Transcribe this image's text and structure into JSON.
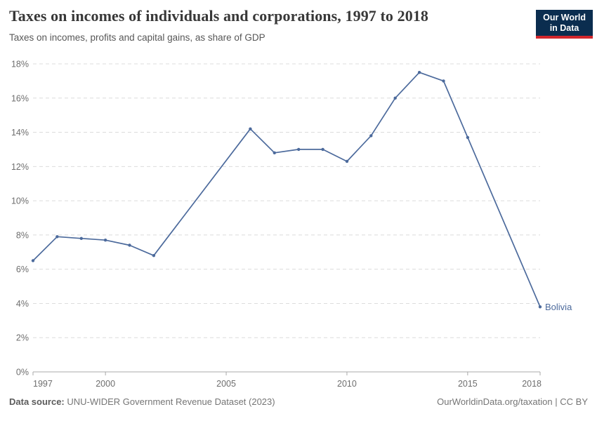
{
  "header": {
    "title": "Taxes on incomes of individuals and corporations, 1997 to 2018",
    "subtitle": "Taxes on incomes, profits and capital gains, as share of GDP"
  },
  "logo": {
    "line1": "Our World",
    "line2": "in Data"
  },
  "colors": {
    "line": "#4c6a9c",
    "logo_bg": "#0b2d4f",
    "logo_stripe": "#d2262c",
    "grid": "#dcdcdc",
    "axis": "#a8a8a8",
    "tick_label": "#6e6e6e"
  },
  "chart_data": {
    "type": "line",
    "title": "Taxes on incomes of individuals and corporations, 1997 to 2018",
    "subtitle": "Taxes on incomes, profits and capital gains, as share of GDP",
    "xlabel": "",
    "ylabel": "",
    "xlim": [
      1997,
      2018
    ],
    "ylim": [
      0,
      18
    ],
    "x_ticks": [
      1997,
      2000,
      2005,
      2010,
      2015,
      2018
    ],
    "x_tick_labels": [
      "1997",
      "2000",
      "2005",
      "2010",
      "2015",
      "2018"
    ],
    "y_ticks": [
      0,
      2,
      4,
      6,
      8,
      10,
      12,
      14,
      16,
      18
    ],
    "y_tick_labels": [
      "0%",
      "2%",
      "4%",
      "6%",
      "8%",
      "10%",
      "12%",
      "14%",
      "16%",
      "18%"
    ],
    "grid": "horizontal-dashed",
    "legend_position": "end-of-line",
    "series": [
      {
        "name": "Bolivia",
        "color": "#4c6a9c",
        "x": [
          1997,
          1998,
          1999,
          2000,
          2001,
          2002,
          2006,
          2007,
          2008,
          2009,
          2010,
          2011,
          2012,
          2013,
          2014,
          2015,
          2018
        ],
        "values": [
          6.5,
          7.9,
          7.8,
          7.7,
          7.4,
          6.8,
          14.2,
          12.8,
          13.0,
          13.0,
          12.3,
          13.8,
          16.0,
          17.5,
          17.0,
          13.7,
          3.8
        ]
      }
    ]
  },
  "footer": {
    "source_label": "Data source:",
    "source": "UNU-WIDER Government Revenue Dataset (2023)",
    "link": "OurWorldinData.org/taxation",
    "separator": "|",
    "license": "CC BY"
  }
}
